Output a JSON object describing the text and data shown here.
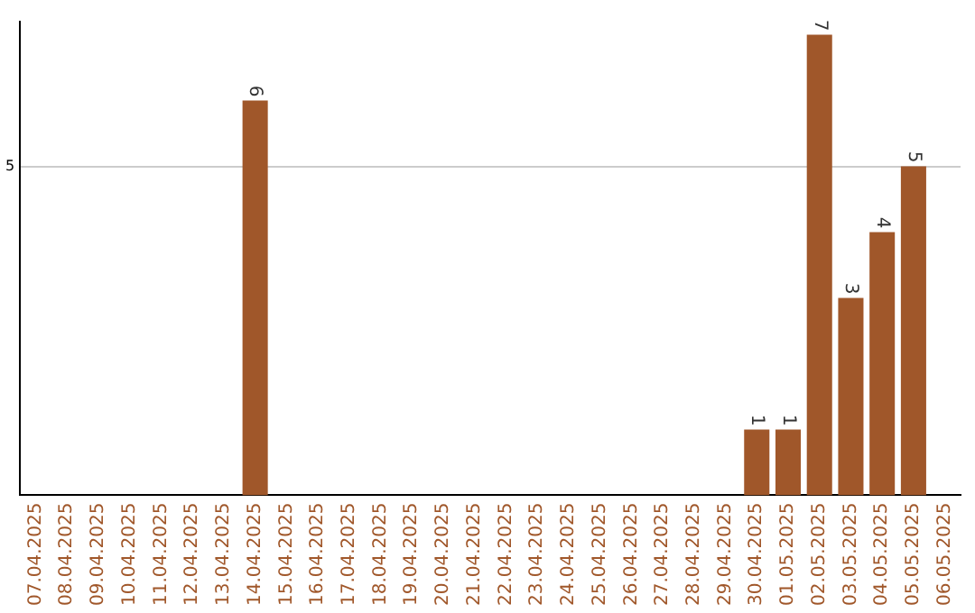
{
  "chart_data": {
    "type": "bar",
    "categories": [
      "07.04.2025",
      "08.04.2025",
      "09.04.2025",
      "10.04.2025",
      "11.04.2025",
      "12.04.2025",
      "13.04.2025",
      "14.04.2025",
      "15.04.2025",
      "16.04.2025",
      "17.04.2025",
      "18.04.2025",
      "19.04.2025",
      "20.04.2025",
      "21.04.2025",
      "22.04.2025",
      "23.04.2025",
      "24.04.2025",
      "25.04.2025",
      "26.04.2025",
      "27.04.2025",
      "28.04.2025",
      "29.04.2025",
      "30.04.2025",
      "01.05.2025",
      "02.05.2025",
      "03.05.2025",
      "04.05.2025",
      "05.05.2025",
      "06.05.2025"
    ],
    "values": [
      null,
      null,
      null,
      null,
      null,
      null,
      null,
      6,
      null,
      null,
      null,
      null,
      null,
      null,
      null,
      null,
      null,
      null,
      null,
      null,
      null,
      null,
      null,
      1,
      1,
      7,
      3,
      4,
      5,
      null
    ],
    "color": "#a0572a",
    "ylim": [
      0,
      7.2
    ],
    "yticks": [
      5
    ],
    "grid": "y",
    "legend": false,
    "data_labels": true
  }
}
